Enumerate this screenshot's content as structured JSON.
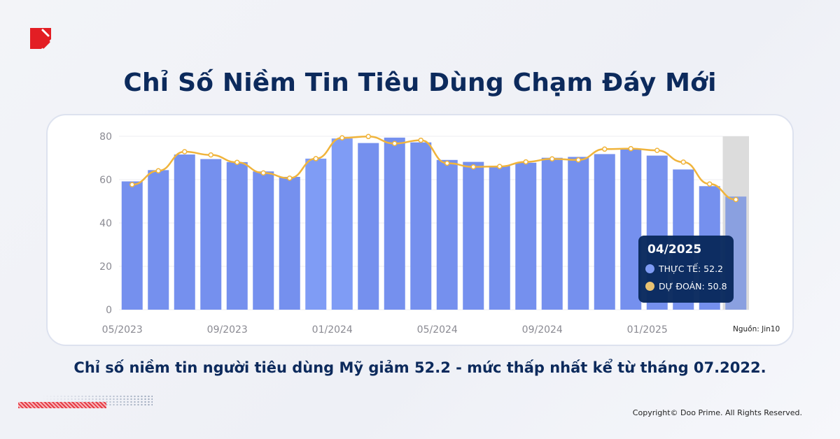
{
  "title": "Chỉ Số Niềm Tin Tiêu Dùng Chạm Đáy Mới",
  "subtitle": "Chỉ số niềm tin người tiêu dùng Mỹ giảm 52.2 - mức thấp nhất kể từ tháng 07.2022.",
  "copyright": "Copyright© Doo Prime. All Rights Reserved.",
  "source": "Nguồn: Jin10",
  "colors": {
    "bar": "#7590ee",
    "bar_highlight": "#7f9cf5",
    "line": "#f0b43c",
    "title": "#0c2a5c",
    "tooltip_bg": "#0a2a5e",
    "logo": "#e31e24"
  },
  "icons": {
    "logo": "doo-prime-logo"
  },
  "tooltip": {
    "title": "04/2025",
    "actual_label": "THỰC TẾ: 52.2",
    "forecast_label": "DỰ ĐOÁN: 50.8"
  },
  "chart_data": {
    "type": "bar",
    "categories": [
      "05/2023",
      "06/2023",
      "07/2023",
      "08/2023",
      "09/2023",
      "10/2023",
      "11/2023",
      "12/2023",
      "01/2024",
      "02/2024",
      "03/2024",
      "04/2024",
      "05/2024",
      "06/2024",
      "07/2024",
      "08/2024",
      "09/2024",
      "10/2024",
      "11/2024",
      "12/2024",
      "01/2025",
      "02/2025",
      "03/2025",
      "04/2025"
    ],
    "x_tick_labels": [
      "05/2023",
      "09/2023",
      "01/2024",
      "05/2024",
      "09/2024",
      "01/2025"
    ],
    "y_ticks": [
      0,
      20,
      40,
      60,
      80
    ],
    "ylim": [
      0,
      80
    ],
    "grid": true,
    "highlighted": "04/2025",
    "series": [
      {
        "name": "THỰC TẾ",
        "type": "bar",
        "values": [
          59.2,
          64.4,
          71.6,
          69.5,
          68.1,
          63.8,
          61.3,
          69.7,
          79.0,
          76.9,
          79.4,
          77.2,
          69.1,
          68.2,
          66.4,
          67.8,
          70.1,
          70.5,
          71.8,
          74.0,
          71.1,
          64.7,
          57.0,
          52.2
        ]
      },
      {
        "name": "DỰ ĐOÁN",
        "type": "line",
        "values": [
          57.7,
          64.1,
          72.9,
          71.4,
          68.0,
          63.1,
          60.7,
          69.7,
          79.3,
          79.9,
          76.7,
          78.2,
          67.6,
          65.9,
          66.1,
          68.2,
          69.6,
          69.1,
          74.1,
          74.3,
          73.5,
          68.1,
          58.0,
          50.8
        ]
      }
    ]
  }
}
